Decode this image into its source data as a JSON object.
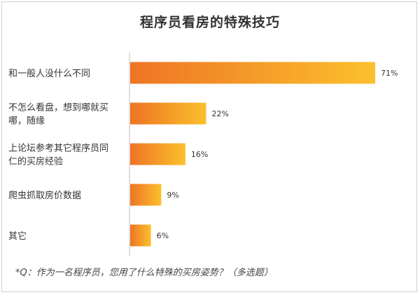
{
  "chart_data": {
    "type": "bar",
    "orientation": "horizontal",
    "title": "程序员看房的特殊技巧",
    "categories": [
      [
        "和一般人没什么不同"
      ],
      [
        "不怎么看盘，想到哪就买",
        "哪，随缘"
      ],
      [
        "上论坛参考其它程序员同",
        "仁的买房经验"
      ],
      [
        "爬虫抓取房价数据"
      ],
      [
        "其它"
      ]
    ],
    "values": [
      71,
      22,
      16,
      9,
      6
    ],
    "value_labels": [
      "71%",
      "22%",
      "16%",
      "9%",
      "6%"
    ],
    "unit": "%",
    "xlim": [
      0,
      71
    ],
    "xlabel": "",
    "ylabel": "",
    "grid": false,
    "legend": "none",
    "colors": {
      "bar_start": "#ee7424",
      "bar_end": "#fbc02d",
      "axis": "#bfbfbf",
      "text": "#333333"
    },
    "footnote": "*Q：作为一名程序员，您用了什么特殊的买房姿势？（多选题）"
  }
}
